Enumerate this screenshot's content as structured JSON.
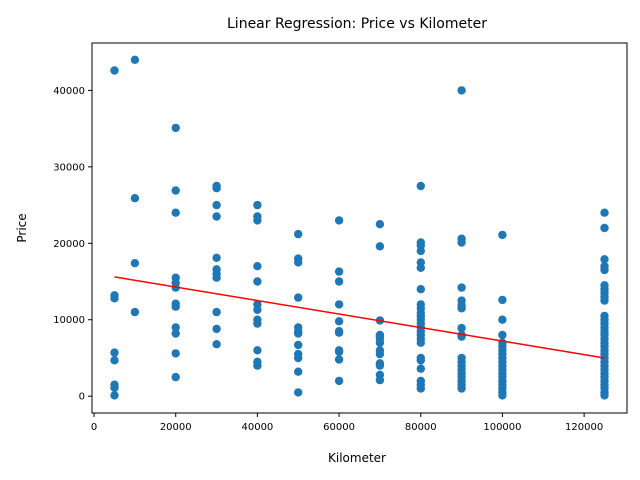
{
  "chart_data": {
    "type": "scatter",
    "title": "Linear Regression: Price vs Kilometer",
    "xlabel": "Kilometer",
    "ylabel": "Price",
    "xlim": [
      -500,
      130500
    ],
    "ylim": [
      -2200,
      46200
    ],
    "xticks": [
      0,
      20000,
      40000,
      60000,
      80000,
      100000,
      120000
    ],
    "yticks": [
      0,
      10000,
      20000,
      30000,
      40000
    ],
    "grid": false,
    "point_color": "#1f77b4",
    "regression": {
      "color": "#ff0000",
      "x": [
        5000,
        125000
      ],
      "y": [
        15600,
        5000
      ]
    },
    "series": [
      {
        "points": [
          [
            5000,
            42600
          ],
          [
            5000,
            13200
          ],
          [
            5000,
            12800
          ],
          [
            5000,
            5700
          ],
          [
            5000,
            4700
          ],
          [
            5000,
            1500
          ],
          [
            5000,
            1100
          ],
          [
            5000,
            100
          ],
          [
            10000,
            44000
          ],
          [
            10000,
            25900
          ],
          [
            10000,
            17400
          ],
          [
            10000,
            11000
          ],
          [
            20000,
            35100
          ],
          [
            20000,
            26900
          ],
          [
            20000,
            24000
          ],
          [
            20000,
            15500
          ],
          [
            20000,
            14800
          ],
          [
            20000,
            14200
          ],
          [
            20000,
            12100
          ],
          [
            20000,
            11700
          ],
          [
            20000,
            9000
          ],
          [
            20000,
            8200
          ],
          [
            20000,
            5600
          ],
          [
            20000,
            2500
          ],
          [
            30000,
            27500
          ],
          [
            30000,
            27200
          ],
          [
            30000,
            25000
          ],
          [
            30000,
            23500
          ],
          [
            30000,
            18100
          ],
          [
            30000,
            16600
          ],
          [
            30000,
            16000
          ],
          [
            30000,
            15500
          ],
          [
            30000,
            11000
          ],
          [
            30000,
            8800
          ],
          [
            30000,
            6800
          ],
          [
            40000,
            25000
          ],
          [
            40000,
            23500
          ],
          [
            40000,
            23000
          ],
          [
            40000,
            17000
          ],
          [
            40000,
            15000
          ],
          [
            40000,
            12000
          ],
          [
            40000,
            11300
          ],
          [
            40000,
            10000
          ],
          [
            40000,
            9500
          ],
          [
            40000,
            6000
          ],
          [
            40000,
            4500
          ],
          [
            40000,
            4000
          ],
          [
            50000,
            21200
          ],
          [
            50000,
            18000
          ],
          [
            50000,
            17500
          ],
          [
            50000,
            12900
          ],
          [
            50000,
            9000
          ],
          [
            50000,
            8500
          ],
          [
            50000,
            8200
          ],
          [
            50000,
            6700
          ],
          [
            50000,
            5500
          ],
          [
            50000,
            5000
          ],
          [
            50000,
            3200
          ],
          [
            50000,
            500
          ],
          [
            60000,
            23000
          ],
          [
            60000,
            16300
          ],
          [
            60000,
            15000
          ],
          [
            60000,
            12000
          ],
          [
            60000,
            9800
          ],
          [
            60000,
            8500
          ],
          [
            60000,
            8300
          ],
          [
            60000,
            6000
          ],
          [
            60000,
            5800
          ],
          [
            60000,
            4800
          ],
          [
            60000,
            2000
          ],
          [
            70000,
            22500
          ],
          [
            70000,
            19600
          ],
          [
            70000,
            9900
          ],
          [
            70000,
            8000
          ],
          [
            70000,
            7800
          ],
          [
            70000,
            7500
          ],
          [
            70000,
            7000
          ],
          [
            70000,
            6000
          ],
          [
            70000,
            5500
          ],
          [
            70000,
            4300
          ],
          [
            70000,
            4000
          ],
          [
            70000,
            2800
          ],
          [
            70000,
            2100
          ],
          [
            80000,
            27500
          ],
          [
            80000,
            20100
          ],
          [
            80000,
            19700
          ],
          [
            80000,
            19000
          ],
          [
            80000,
            17500
          ],
          [
            80000,
            16800
          ],
          [
            80000,
            14000
          ],
          [
            80000,
            12000
          ],
          [
            80000,
            11500
          ],
          [
            80000,
            10900
          ],
          [
            80000,
            10500
          ],
          [
            80000,
            10000
          ],
          [
            80000,
            9500
          ],
          [
            80000,
            9000
          ],
          [
            80000,
            8500
          ],
          [
            80000,
            8000
          ],
          [
            80000,
            7500
          ],
          [
            80000,
            7000
          ],
          [
            80000,
            5000
          ],
          [
            80000,
            4700
          ],
          [
            80000,
            3600
          ],
          [
            80000,
            2000
          ],
          [
            80000,
            1500
          ],
          [
            80000,
            1000
          ],
          [
            90000,
            40000
          ],
          [
            90000,
            20600
          ],
          [
            90000,
            20100
          ],
          [
            90000,
            14200
          ],
          [
            90000,
            12500
          ],
          [
            90000,
            11900
          ],
          [
            90000,
            11500
          ],
          [
            90000,
            8900
          ],
          [
            90000,
            8000
          ],
          [
            90000,
            7800
          ],
          [
            90000,
            5000
          ],
          [
            90000,
            4500
          ],
          [
            90000,
            4000
          ],
          [
            90000,
            3500
          ],
          [
            90000,
            3000
          ],
          [
            90000,
            2500
          ],
          [
            90000,
            2000
          ],
          [
            90000,
            1500
          ],
          [
            90000,
            1000
          ],
          [
            100000,
            21100
          ],
          [
            100000,
            12600
          ],
          [
            100000,
            10000
          ],
          [
            100000,
            8000
          ],
          [
            100000,
            7000
          ],
          [
            100000,
            6500
          ],
          [
            100000,
            6000
          ],
          [
            100000,
            5500
          ],
          [
            100000,
            5000
          ],
          [
            100000,
            4500
          ],
          [
            100000,
            4000
          ],
          [
            100000,
            3500
          ],
          [
            100000,
            3000
          ],
          [
            100000,
            2500
          ],
          [
            100000,
            2000
          ],
          [
            100000,
            1500
          ],
          [
            100000,
            1000
          ],
          [
            100000,
            500
          ],
          [
            100000,
            100
          ],
          [
            125000,
            24000
          ],
          [
            125000,
            22000
          ],
          [
            125000,
            17900
          ],
          [
            125000,
            17000
          ],
          [
            125000,
            16500
          ],
          [
            125000,
            14500
          ],
          [
            125000,
            14000
          ],
          [
            125000,
            13500
          ],
          [
            125000,
            13000
          ],
          [
            125000,
            12500
          ],
          [
            125000,
            10500
          ],
          [
            125000,
            10000
          ],
          [
            125000,
            9500
          ],
          [
            125000,
            9000
          ],
          [
            125000,
            8500
          ],
          [
            125000,
            8000
          ],
          [
            125000,
            7500
          ],
          [
            125000,
            7000
          ],
          [
            125000,
            6500
          ],
          [
            125000,
            6000
          ],
          [
            125000,
            5500
          ],
          [
            125000,
            5000
          ],
          [
            125000,
            4500
          ],
          [
            125000,
            4000
          ],
          [
            125000,
            3500
          ],
          [
            125000,
            3000
          ],
          [
            125000,
            2500
          ],
          [
            125000,
            2000
          ],
          [
            125000,
            1500
          ],
          [
            125000,
            1000
          ],
          [
            125000,
            500
          ],
          [
            125000,
            100
          ]
        ]
      }
    ]
  }
}
